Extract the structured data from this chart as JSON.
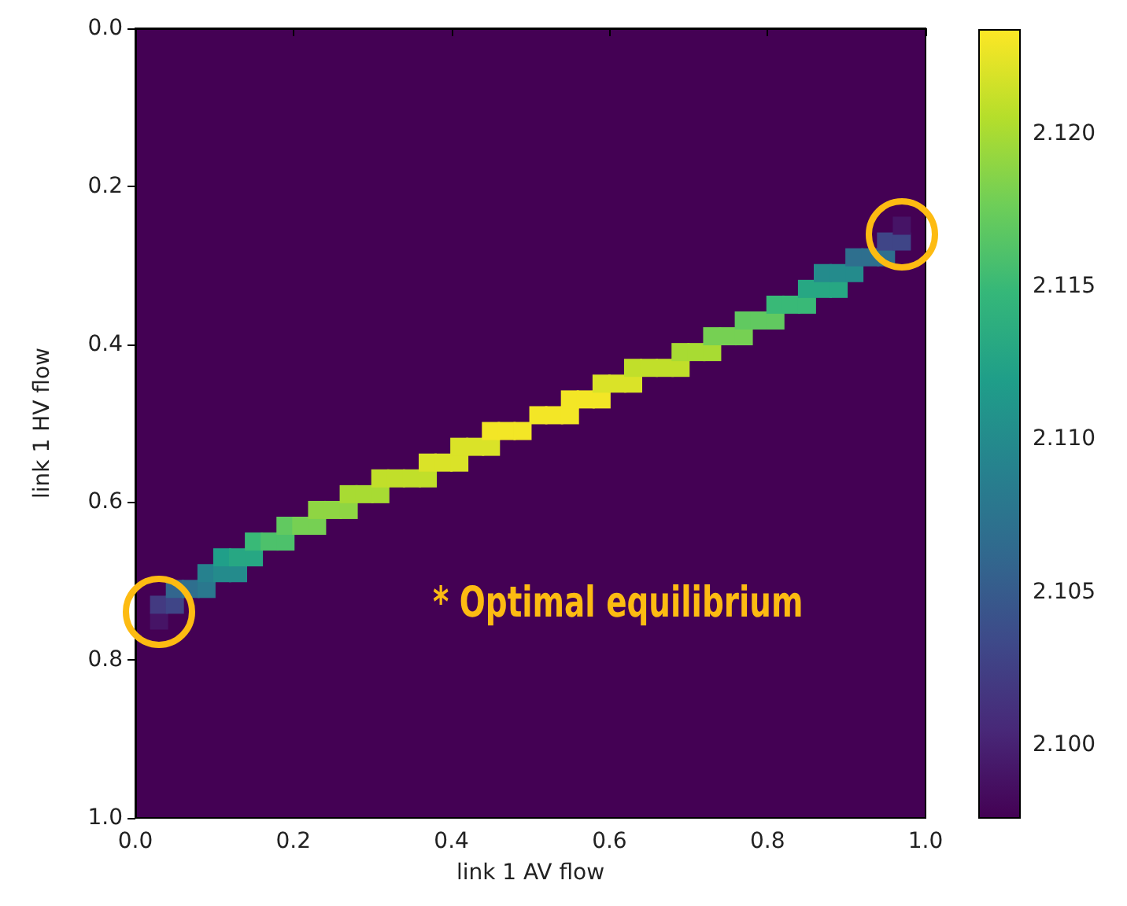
{
  "chart_data": {
    "type": "scatter",
    "xlabel": "link 1 AV flow",
    "ylabel": "link 1 HV flow",
    "marker": "square",
    "x": [
      0.03,
      0.03,
      0.05,
      0.05,
      0.07,
      0.09,
      0.09,
      0.11,
      0.13,
      0.11,
      0.13,
      0.15,
      0.15,
      0.17,
      0.19,
      0.19,
      0.21,
      0.23,
      0.23,
      0.25,
      0.27,
      0.27,
      0.29,
      0.31,
      0.31,
      0.33,
      0.35,
      0.37,
      0.37,
      0.39,
      0.41,
      0.41,
      0.43,
      0.45,
      0.45,
      0.47,
      0.49,
      0.51,
      0.53,
      0.55,
      0.55,
      0.57,
      0.59,
      0.59,
      0.61,
      0.63,
      0.63,
      0.65,
      0.67,
      0.69,
      0.69,
      0.71,
      0.73,
      0.73,
      0.75,
      0.77,
      0.77,
      0.79,
      0.81,
      0.81,
      0.83,
      0.85,
      0.85,
      0.87,
      0.89,
      0.87,
      0.89,
      0.91,
      0.91,
      0.93,
      0.95,
      0.95,
      0.97,
      0.97
    ],
    "values": [
      0.75,
      0.73,
      0.73,
      0.71,
      0.71,
      0.71,
      0.69,
      0.69,
      0.69,
      0.67,
      0.67,
      0.67,
      0.65,
      0.65,
      0.65,
      0.63,
      0.63,
      0.63,
      0.61,
      0.61,
      0.61,
      0.59,
      0.59,
      0.59,
      0.57,
      0.57,
      0.57,
      0.57,
      0.55,
      0.55,
      0.55,
      0.53,
      0.53,
      0.53,
      0.51,
      0.51,
      0.51,
      0.49,
      0.49,
      0.49,
      0.47,
      0.47,
      0.47,
      0.45,
      0.45,
      0.45,
      0.43,
      0.43,
      0.43,
      0.43,
      0.41,
      0.41,
      0.41,
      0.39,
      0.39,
      0.39,
      0.37,
      0.37,
      0.37,
      0.35,
      0.35,
      0.35,
      0.33,
      0.33,
      0.33,
      0.31,
      0.31,
      0.31,
      0.29,
      0.29,
      0.29,
      0.27,
      0.27,
      0.25
    ],
    "cvalues": [
      2.099,
      2.102,
      2.103,
      2.106,
      2.107,
      2.108,
      2.109,
      2.11,
      2.11,
      2.112,
      2.113,
      2.113,
      2.115,
      2.116,
      2.116,
      2.117,
      2.118,
      2.118,
      2.119,
      2.119,
      2.119,
      2.12,
      2.12,
      2.12,
      2.121,
      2.121,
      2.121,
      2.121,
      2.122,
      2.122,
      2.122,
      2.122,
      2.122,
      2.122,
      2.123,
      2.123,
      2.123,
      2.123,
      2.123,
      2.123,
      2.123,
      2.123,
      2.123,
      2.122,
      2.122,
      2.122,
      2.121,
      2.121,
      2.121,
      2.121,
      2.12,
      2.12,
      2.12,
      2.118,
      2.118,
      2.118,
      2.117,
      2.117,
      2.117,
      2.115,
      2.115,
      2.115,
      2.113,
      2.113,
      2.113,
      2.11,
      2.11,
      2.11,
      2.107,
      2.107,
      2.107,
      2.103,
      2.103,
      2.099
    ],
    "xlim": [
      0,
      1
    ],
    "ylim": [
      1,
      0
    ],
    "xticks": [
      {
        "value": 0,
        "label": "0.0"
      },
      {
        "value": 0.2,
        "label": "0.2"
      },
      {
        "value": 0.4,
        "label": "0.4"
      },
      {
        "value": 0.6,
        "label": "0.6"
      },
      {
        "value": 0.8,
        "label": "0.8"
      },
      {
        "value": 1,
        "label": "1.0"
      }
    ],
    "yticks": [
      {
        "value": 0,
        "label": "0.0"
      },
      {
        "value": 0.2,
        "label": "0.2"
      },
      {
        "value": 0.4,
        "label": "0.4"
      },
      {
        "value": 0.6,
        "label": "0.6"
      },
      {
        "value": 0.8,
        "label": "0.8"
      },
      {
        "value": 1,
        "label": "1.0"
      }
    ],
    "clim": [
      2.0976,
      2.1234
    ],
    "cticks": [
      {
        "value": 2.1,
        "label": "2.100"
      },
      {
        "value": 2.105,
        "label": "2.105"
      },
      {
        "value": 2.11,
        "label": "2.110"
      },
      {
        "value": 2.115,
        "label": "2.115"
      },
      {
        "value": 2.12,
        "label": "2.120"
      }
    ],
    "annotations": [
      "* Optimal equilibrium"
    ]
  }
}
